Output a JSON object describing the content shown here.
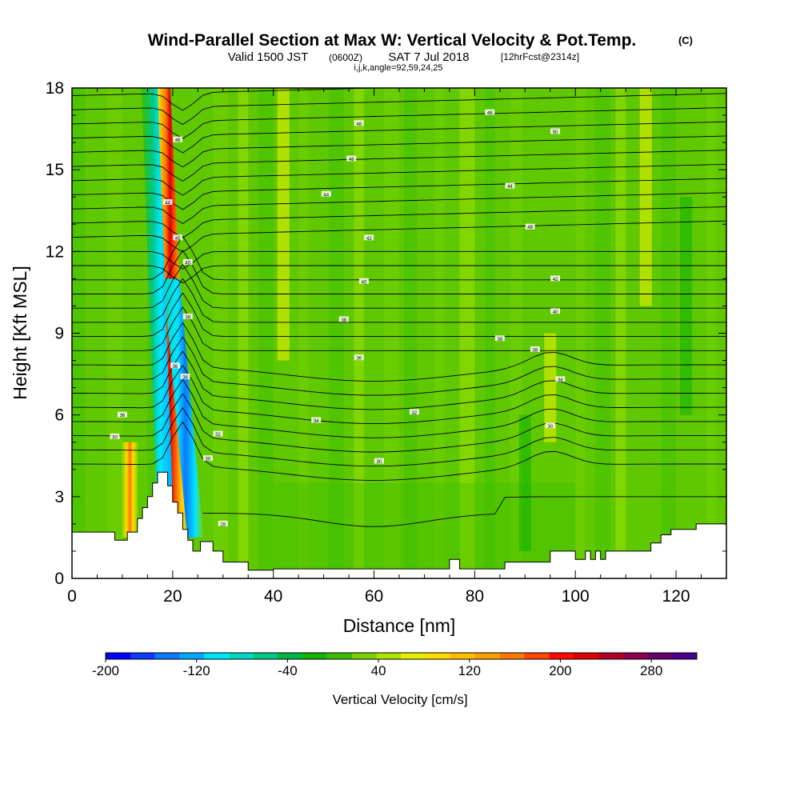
{
  "title": {
    "main": "Wind-Parallel Section at Max W: Vertical Velocity & Pot.Temp.",
    "copyright": "(C)",
    "valid_prefix": "Valid 1500 JST",
    "valid_utc": "(0600Z)",
    "valid_date": "SAT 7 Jul 2018",
    "forecast": "[12hrFcst@2314z]",
    "params": "i,j,k,angle=92,59,24,25"
  },
  "chart_data": {
    "type": "heatmap",
    "xlabel": "Distance [nm]",
    "ylabel": "Height [Kft MSL]",
    "xlim": [
      0,
      130
    ],
    "ylim": [
      0,
      18
    ],
    "x_ticks": [
      {
        "value": 0,
        "label": "0"
      },
      {
        "value": 20,
        "label": "20"
      },
      {
        "value": 40,
        "label": "40"
      },
      {
        "value": 60,
        "label": "60"
      },
      {
        "value": 80,
        "label": "80"
      },
      {
        "value": 100,
        "label": "100"
      },
      {
        "value": 120,
        "label": "120"
      }
    ],
    "y_ticks": [
      {
        "value": 0,
        "label": "0"
      },
      {
        "value": 3,
        "label": "3"
      },
      {
        "value": 6,
        "label": "6"
      },
      {
        "value": 9,
        "label": "9"
      },
      {
        "value": 12,
        "label": "12"
      },
      {
        "value": 15,
        "label": "15"
      },
      {
        "value": 18,
        "label": "18"
      }
    ],
    "colorbar": {
      "label": "Vertical Velocity [cm/s]",
      "min": -200,
      "max": 320,
      "step": 20,
      "tick_labels": [
        {
          "value": -200,
          "label": "-200"
        },
        {
          "value": -120,
          "label": "-120"
        },
        {
          "value": -40,
          "label": "-40"
        },
        {
          "value": 40,
          "label": "40"
        },
        {
          "value": 120,
          "label": "120"
        },
        {
          "value": 200,
          "label": "200"
        },
        {
          "value": 280,
          "label": "280"
        }
      ],
      "colors": [
        "#0000ff",
        "#0a3cff",
        "#0a78ff",
        "#00aaff",
        "#00e6ff",
        "#00d7c3",
        "#00c882",
        "#00b441",
        "#14b400",
        "#3cbe00",
        "#78d200",
        "#aae600",
        "#e6f000",
        "#ffdc00",
        "#ffbe00",
        "#ffa000",
        "#ff7800",
        "#ff4600",
        "#ff0a00",
        "#dc0000",
        "#b40028",
        "#8c0050",
        "#64006e",
        "#46008c"
      ]
    },
    "vertical_velocity_features": [
      {
        "x": 21.5,
        "y_from": 1.8,
        "y_to": 18,
        "lean": -0.25,
        "peak": 260
      },
      {
        "x": 18.5,
        "y_from": 2.5,
        "y_to": 18,
        "lean": -0.2,
        "peak": -120
      },
      {
        "x": 24.5,
        "y_from": 1.5,
        "y_to": 11,
        "lean": -0.5,
        "peak": -160
      },
      {
        "x": 11.5,
        "y_from": 1.5,
        "y_to": 5,
        "lean": 0,
        "peak": 160
      },
      {
        "x": 95,
        "y_from": 5,
        "y_to": 9,
        "lean": 0,
        "peak": 60
      },
      {
        "x": 42,
        "y_from": 8,
        "y_to": 18,
        "lean": 0,
        "peak": 50
      },
      {
        "x": 114,
        "y_from": 10,
        "y_to": 18,
        "lean": 0,
        "peak": 40
      },
      {
        "x": 90,
        "y_from": 1,
        "y_to": 6,
        "lean": 0,
        "peak": -40
      },
      {
        "x": 122,
        "y_from": 6,
        "y_to": 14,
        "lean": 0,
        "peak": -40
      }
    ],
    "theta_contour_labels": [
      {
        "x": 10,
        "y": 6.0,
        "label": "36"
      },
      {
        "x": 8.5,
        "y": 5.2,
        "label": "30"
      },
      {
        "x": 21,
        "y": 16.1,
        "label": "46"
      },
      {
        "x": 19,
        "y": 13.8,
        "label": "44"
      },
      {
        "x": 21,
        "y": 12.5,
        "label": "45"
      },
      {
        "x": 23,
        "y": 11.6,
        "label": "40"
      },
      {
        "x": 23,
        "y": 9.6,
        "label": "38"
      },
      {
        "x": 20.5,
        "y": 7.8,
        "label": "36"
      },
      {
        "x": 22.5,
        "y": 7.4,
        "label": "34"
      },
      {
        "x": 29,
        "y": 5.3,
        "label": "32"
      },
      {
        "x": 27,
        "y": 4.4,
        "label": "30"
      },
      {
        "x": 30,
        "y": 2.0,
        "label": "28"
      },
      {
        "x": 57,
        "y": 16.7,
        "label": "48"
      },
      {
        "x": 55.5,
        "y": 15.4,
        "label": "46"
      },
      {
        "x": 50.5,
        "y": 14.1,
        "label": "44"
      },
      {
        "x": 59,
        "y": 12.5,
        "label": "42"
      },
      {
        "x": 58,
        "y": 10.9,
        "label": "40"
      },
      {
        "x": 54,
        "y": 9.5,
        "label": "38"
      },
      {
        "x": 57,
        "y": 8.1,
        "label": "36"
      },
      {
        "x": 48.5,
        "y": 5.8,
        "label": "34"
      },
      {
        "x": 61,
        "y": 4.3,
        "label": "30"
      },
      {
        "x": 68,
        "y": 6.1,
        "label": "32"
      },
      {
        "x": 83,
        "y": 17.1,
        "label": "48"
      },
      {
        "x": 96,
        "y": 16.4,
        "label": "50"
      },
      {
        "x": 87,
        "y": 14.4,
        "label": "44"
      },
      {
        "x": 91,
        "y": 12.9,
        "label": "48"
      },
      {
        "x": 96,
        "y": 11.0,
        "label": "42"
      },
      {
        "x": 96,
        "y": 9.8,
        "label": "40"
      },
      {
        "x": 85,
        "y": 8.8,
        "label": "38"
      },
      {
        "x": 92,
        "y": 8.4,
        "label": "38"
      },
      {
        "x": 97,
        "y": 7.3,
        "label": "36"
      },
      {
        "x": 95,
        "y": 5.6,
        "label": "30"
      }
    ],
    "terrain_heights": [
      [
        0,
        1.7
      ],
      [
        6,
        1.7
      ],
      [
        8.5,
        1.7
      ],
      [
        8.5,
        1.4
      ],
      [
        11,
        1.4
      ],
      [
        11,
        1.7
      ],
      [
        13,
        1.7
      ],
      [
        13,
        2.2
      ],
      [
        14,
        2.2
      ],
      [
        14,
        2.6
      ],
      [
        15,
        2.6
      ],
      [
        15,
        3.0
      ],
      [
        16,
        3.0
      ],
      [
        16,
        3.5
      ],
      [
        17,
        3.5
      ],
      [
        17,
        3.9
      ],
      [
        19,
        3.9
      ],
      [
        19,
        3.4
      ],
      [
        20,
        3.4
      ],
      [
        20,
        2.8
      ],
      [
        21,
        2.8
      ],
      [
        21,
        2.4
      ],
      [
        22,
        2.4
      ],
      [
        22,
        1.8
      ],
      [
        23,
        1.8
      ],
      [
        23,
        1.4
      ],
      [
        24,
        1.4
      ],
      [
        24,
        1.0
      ],
      [
        25.5,
        1.0
      ],
      [
        25.5,
        1.35
      ],
      [
        28,
        1.35
      ],
      [
        28,
        1.0
      ],
      [
        30,
        1.0
      ],
      [
        30,
        0.6
      ],
      [
        35,
        0.6
      ],
      [
        35,
        0.3
      ],
      [
        40,
        0.3
      ],
      [
        40,
        0.35
      ],
      [
        75,
        0.35
      ],
      [
        75,
        0.7
      ],
      [
        77,
        0.7
      ],
      [
        77,
        0.35
      ],
      [
        86,
        0.35
      ],
      [
        86,
        0.6
      ],
      [
        95,
        0.6
      ],
      [
        95,
        1.0
      ],
      [
        100,
        1.0
      ],
      [
        100,
        0.7
      ],
      [
        102,
        0.7
      ],
      [
        102,
        1.0
      ],
      [
        103,
        1.0
      ],
      [
        103,
        0.7
      ],
      [
        104,
        0.7
      ],
      [
        104,
        1.0
      ],
      [
        105,
        1.0
      ],
      [
        105,
        0.7
      ],
      [
        106,
        0.7
      ],
      [
        106,
        1.0
      ],
      [
        115,
        1.0
      ],
      [
        115,
        1.3
      ],
      [
        117,
        1.3
      ],
      [
        117,
        1.6
      ],
      [
        119,
        1.6
      ],
      [
        119,
        1.8
      ],
      [
        124,
        1.8
      ],
      [
        124,
        2.0
      ],
      [
        130,
        2.0
      ]
    ]
  }
}
